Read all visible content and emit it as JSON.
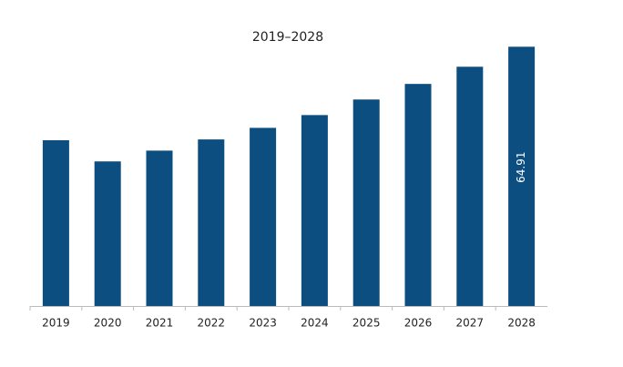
{
  "chart_data": {
    "type": "bar",
    "title": "2019–2028",
    "categories": [
      "2019",
      "2020",
      "2021",
      "2022",
      "2023",
      "2024",
      "2025",
      "2026",
      "2027",
      "2028"
    ],
    "values": [
      41.5,
      36.2,
      38.9,
      41.7,
      44.6,
      47.8,
      51.7,
      55.6,
      59.9,
      64.91
    ],
    "value_labels": [
      null,
      null,
      null,
      null,
      null,
      null,
      null,
      null,
      null,
      "64.91"
    ],
    "color": "#0b4e7f",
    "ylim": [
      0,
      70
    ]
  }
}
